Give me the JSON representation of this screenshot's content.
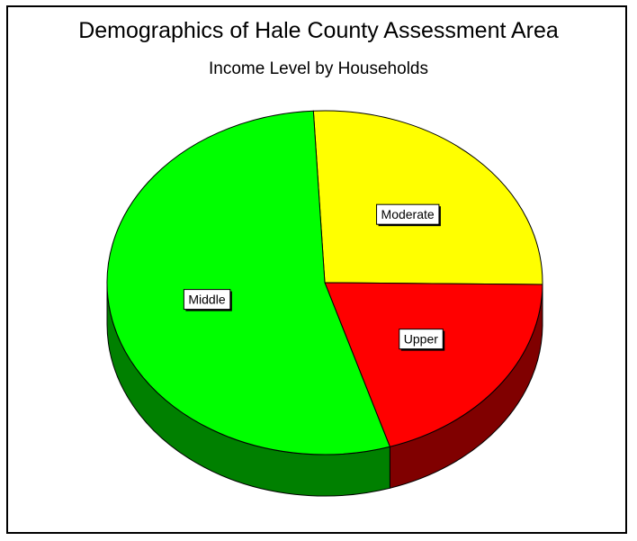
{
  "chart_data": {
    "type": "pie",
    "title": "Demographics of Hale County Assessment Area",
    "subtitle": "Income Level by Households",
    "slices": [
      {
        "label": "Moderate",
        "value": 26,
        "color": "#ffff00",
        "side_color": "#a0a000"
      },
      {
        "label": "Upper",
        "value": 20,
        "color": "#ff0000",
        "side_color": "#800000"
      },
      {
        "label": "Middle",
        "value": 54,
        "color": "#00ff00",
        "side_color": "#008000"
      }
    ],
    "legend": "none",
    "grid": false,
    "style": "3d-pie"
  }
}
